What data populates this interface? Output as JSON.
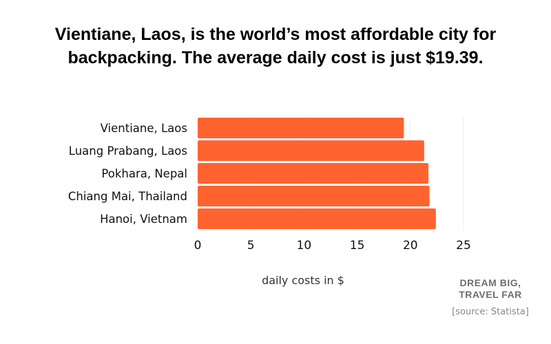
{
  "chart_data": {
    "type": "bar",
    "orientation": "horizontal",
    "title": "Vientiane, Laos, is the world’s most affordable city for backpacking. The average daily cost is just $19.39.",
    "categories": [
      "Vientiane, Laos",
      "Luang Prabang, Laos",
      "Pokhara, Nepal",
      "Chiang Mai, Thailand",
      "Hanoi, Vietnam"
    ],
    "values": [
      19.39,
      21.3,
      21.7,
      21.8,
      22.4
    ],
    "xlabel": "daily costs in $",
    "ylabel": "",
    "xlim": [
      0,
      25
    ],
    "xticks": [
      "0",
      "5",
      "10",
      "15",
      "20",
      "25"
    ],
    "grid": "vertical",
    "bar_color": "#ff6430",
    "grid_color": "#eeeeee"
  },
  "footer": {
    "brand_line1": "DREAM BIG,",
    "brand_line2": "TRAVEL FAR",
    "source": "[source: Statista]"
  }
}
